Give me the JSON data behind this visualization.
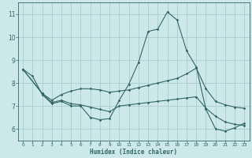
{
  "xlabel": "Humidex (Indice chaleur)",
  "xlim": [
    -0.5,
    23.5
  ],
  "ylim": [
    5.5,
    11.5
  ],
  "xticks": [
    0,
    1,
    2,
    3,
    4,
    5,
    6,
    7,
    8,
    9,
    10,
    11,
    12,
    13,
    14,
    15,
    16,
    17,
    18,
    19,
    20,
    21,
    22,
    23
  ],
  "yticks": [
    6,
    7,
    8,
    9,
    10,
    11
  ],
  "bg_color": "#cce8e8",
  "line_color": "#336666",
  "grid_color": "#aacccc",
  "lines": [
    {
      "x": [
        0,
        1,
        2,
        3,
        4,
        5,
        6,
        7,
        8,
        9,
        10,
        11,
        12,
        13,
        14,
        15,
        16,
        17,
        18,
        19,
        20,
        21,
        22,
        23
      ],
      "y": [
        8.6,
        8.3,
        7.5,
        7.1,
        7.2,
        7.0,
        7.0,
        6.5,
        6.4,
        6.45,
        7.25,
        7.95,
        8.9,
        10.25,
        10.35,
        11.1,
        10.75,
        9.4,
        8.7,
        6.85,
        6.0,
        5.9,
        6.05,
        6.25
      ]
    },
    {
      "x": [
        0,
        2,
        3,
        4,
        5,
        6,
        7,
        8,
        9,
        10,
        11,
        12,
        13,
        14,
        15,
        16,
        17,
        18,
        19,
        20,
        21,
        22,
        23
      ],
      "y": [
        8.6,
        7.55,
        7.25,
        7.5,
        7.65,
        7.75,
        7.75,
        7.7,
        7.6,
        7.65,
        7.7,
        7.8,
        7.9,
        8.0,
        8.1,
        8.2,
        8.4,
        8.65,
        7.75,
        7.2,
        7.05,
        6.95,
        6.9
      ]
    },
    {
      "x": [
        0,
        2,
        3,
        4,
        5,
        6,
        7,
        8,
        9,
        10,
        11,
        12,
        13,
        14,
        15,
        16,
        17,
        18,
        19,
        20,
        21,
        22,
        23
      ],
      "y": [
        8.6,
        7.55,
        7.15,
        7.25,
        7.1,
        7.05,
        6.95,
        6.85,
        6.75,
        7.0,
        7.05,
        7.1,
        7.15,
        7.2,
        7.25,
        7.3,
        7.35,
        7.4,
        6.9,
        6.55,
        6.3,
        6.2,
        6.15
      ]
    }
  ]
}
